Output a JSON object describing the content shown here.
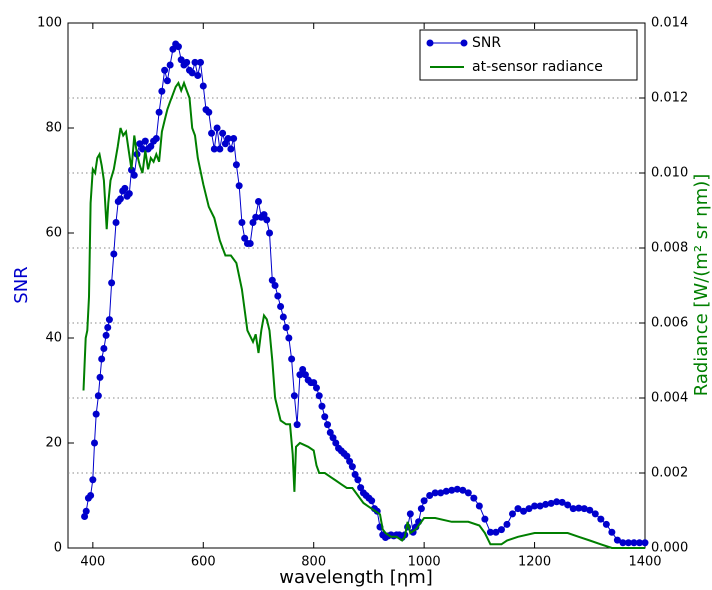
{
  "chart_data": {
    "type": "line",
    "xlabel": "wavelength [ηm]",
    "ylabel": "SNR",
    "y2label": "Radiance [W/(m² sr ηm)]",
    "xlim": [
      355,
      1400
    ],
    "ylim": [
      0,
      100
    ],
    "y2lim": [
      0,
      0.014
    ],
    "xticks": [
      400,
      600,
      800,
      1000,
      1200,
      1400
    ],
    "yticks": [
      0,
      20,
      40,
      60,
      80,
      100
    ],
    "y2ticks": [
      {
        "value": 0,
        "label": "0.000"
      },
      {
        "value": 0.002,
        "label": "0.002"
      },
      {
        "value": 0.004,
        "label": "0.004"
      },
      {
        "value": 0.006,
        "label": "0.006"
      },
      {
        "value": 0.008,
        "label": "0.008"
      },
      {
        "value": 0.01,
        "label": "0.010"
      },
      {
        "value": 0.012,
        "label": "0.012"
      },
      {
        "value": 0.014,
        "label": "0.014"
      }
    ],
    "grid": true,
    "legend": "upper right",
    "series": [
      {
        "name": "SNR",
        "color": "#0000cc",
        "marker": "circle",
        "x": [
          385,
          388,
          392,
          396,
          400,
          403,
          406,
          410,
          413,
          416,
          420,
          424,
          427,
          430,
          434,
          438,
          442,
          446,
          450,
          454,
          458,
          462,
          466,
          470,
          475,
          480,
          485,
          490,
          495,
          500,
          505,
          510,
          515,
          520,
          525,
          530,
          535,
          540,
          545,
          550,
          555,
          560,
          565,
          570,
          575,
          580,
          585,
          590,
          595,
          600,
          605,
          610,
          615,
          620,
          625,
          630,
          635,
          640,
          645,
          650,
          655,
          660,
          665,
          670,
          675,
          680,
          685,
          690,
          695,
          700,
          705,
          710,
          715,
          720,
          725,
          730,
          735,
          740,
          745,
          750,
          755,
          760,
          765,
          770,
          775,
          780,
          785,
          790,
          795,
          800,
          805,
          810,
          815,
          820,
          825,
          830,
          835,
          840,
          845,
          850,
          855,
          860,
          865,
          870,
          875,
          880,
          885,
          890,
          895,
          900,
          905,
          910,
          915,
          920,
          925,
          930,
          935,
          940,
          945,
          950,
          955,
          960,
          965,
          970,
          975,
          980,
          985,
          990,
          995,
          1000,
          1010,
          1020,
          1030,
          1040,
          1050,
          1060,
          1070,
          1080,
          1090,
          1100,
          1110,
          1120,
          1130,
          1140,
          1150,
          1160,
          1170,
          1180,
          1190,
          1200,
          1210,
          1220,
          1230,
          1240,
          1250,
          1260,
          1270,
          1280,
          1290,
          1300,
          1310,
          1320,
          1330,
          1340,
          1350,
          1360,
          1370,
          1380,
          1390,
          1400
        ],
        "values": [
          6,
          7,
          9.5,
          10,
          13,
          20,
          25.5,
          29,
          32.5,
          36,
          38,
          40.5,
          42,
          43.5,
          50.5,
          56,
          62,
          66,
          66.5,
          68,
          68.5,
          67,
          67.5,
          72,
          71,
          75,
          77,
          76,
          77.5,
          76,
          76.5,
          77.5,
          78,
          83,
          87,
          91,
          89,
          92,
          95,
          96,
          95.5,
          93,
          92,
          92.5,
          91,
          90.5,
          92.5,
          90,
          92.5,
          88,
          83.5,
          83,
          79,
          76,
          80,
          76,
          79,
          77,
          78,
          76,
          78,
          73,
          69,
          62,
          59,
          58,
          58,
          62,
          63,
          66,
          63,
          63.5,
          62.5,
          60,
          51,
          50,
          48,
          46,
          44,
          42,
          40,
          36,
          29,
          23.5,
          33,
          34,
          33,
          32,
          31.5,
          31.5,
          30.5,
          29,
          27,
          25,
          23.5,
          22,
          21,
          20,
          19,
          18.5,
          18,
          17.5,
          16.5,
          15.5,
          14,
          13,
          11.5,
          10.5,
          10,
          9.5,
          9,
          7.5,
          7,
          4,
          2.5,
          2,
          2.3,
          2.5,
          2.3,
          2.5,
          2.5,
          2,
          2.5,
          4,
          6.5,
          3,
          4,
          5,
          7.5,
          9,
          10,
          10.5,
          10.5,
          10.8,
          11,
          11.2,
          11,
          10.5,
          9.5,
          8,
          5.5,
          3,
          3,
          3.5,
          4.5,
          6.5,
          7.5,
          7,
          7.5,
          8,
          8,
          8.3,
          8.5,
          8.8,
          8.7,
          8.2,
          7.5,
          7.6,
          7.5,
          7.2,
          6.5,
          5.5,
          4.5,
          3,
          1.5,
          1,
          1,
          1,
          1,
          1
        ]
      },
      {
        "name": "at-sensor radiance",
        "color": "#007f00",
        "axis": "y2",
        "x": [
          383,
          387,
          390,
          393,
          396,
          400,
          404,
          408,
          412,
          416,
          420,
          425,
          428,
          432,
          438,
          445,
          450,
          455,
          460,
          465,
          470,
          475,
          480,
          485,
          490,
          495,
          500,
          505,
          510,
          515,
          520,
          525,
          530,
          535,
          540,
          545,
          550,
          555,
          560,
          565,
          570,
          575,
          580,
          585,
          590,
          600,
          610,
          620,
          630,
          640,
          650,
          660,
          670,
          680,
          690,
          695,
          700,
          705,
          710,
          715,
          720,
          725,
          730,
          740,
          750,
          757,
          762,
          765,
          768,
          775,
          790,
          800,
          805,
          810,
          820,
          830,
          840,
          850,
          860,
          870,
          880,
          890,
          900,
          910,
          920,
          925,
          930,
          940,
          950,
          960,
          965,
          970,
          975,
          985,
          1000,
          1020,
          1050,
          1080,
          1100,
          1110,
          1120,
          1130,
          1140,
          1150,
          1170,
          1200,
          1230,
          1260,
          1280,
          1300,
          1320,
          1340,
          1400
        ],
        "values": [
          0.0042,
          0.0056,
          0.0058,
          0.0067,
          0.0092,
          0.0101,
          0.01,
          0.0104,
          0.0105,
          0.0102,
          0.0098,
          0.0085,
          0.0092,
          0.0098,
          0.0101,
          0.0107,
          0.0112,
          0.011,
          0.0111,
          0.0106,
          0.0101,
          0.011,
          0.0105,
          0.0102,
          0.01,
          0.0106,
          0.0101,
          0.0104,
          0.0103,
          0.0105,
          0.0103,
          0.0111,
          0.0114,
          0.0117,
          0.0119,
          0.0121,
          0.0123,
          0.0124,
          0.0122,
          0.0124,
          0.0122,
          0.012,
          0.0112,
          0.011,
          0.0104,
          0.0097,
          0.0091,
          0.0088,
          0.0082,
          0.0078,
          0.0078,
          0.0076,
          0.0069,
          0.0058,
          0.0055,
          0.0057,
          0.0052,
          0.0058,
          0.0062,
          0.0061,
          0.0058,
          0.005,
          0.004,
          0.0034,
          0.0033,
          0.0033,
          0.0025,
          0.0015,
          0.0027,
          0.0028,
          0.0027,
          0.0026,
          0.0022,
          0.002,
          0.002,
          0.0019,
          0.0018,
          0.0017,
          0.0016,
          0.0016,
          0.0014,
          0.0012,
          0.0011,
          0.001,
          0.0009,
          0.0005,
          0.0004,
          0.0003,
          0.0003,
          0.0002,
          0.0003,
          0.0007,
          0.0004,
          0.0005,
          0.0008,
          0.0008,
          0.0007,
          0.0007,
          0.0006,
          0.0004,
          0.0001,
          0.0001,
          0.0001,
          0.0002,
          0.0003,
          0.0004,
          0.0004,
          0.0004,
          0.0003,
          0.0002,
          0.0001,
          0,
          0
        ]
      }
    ]
  }
}
